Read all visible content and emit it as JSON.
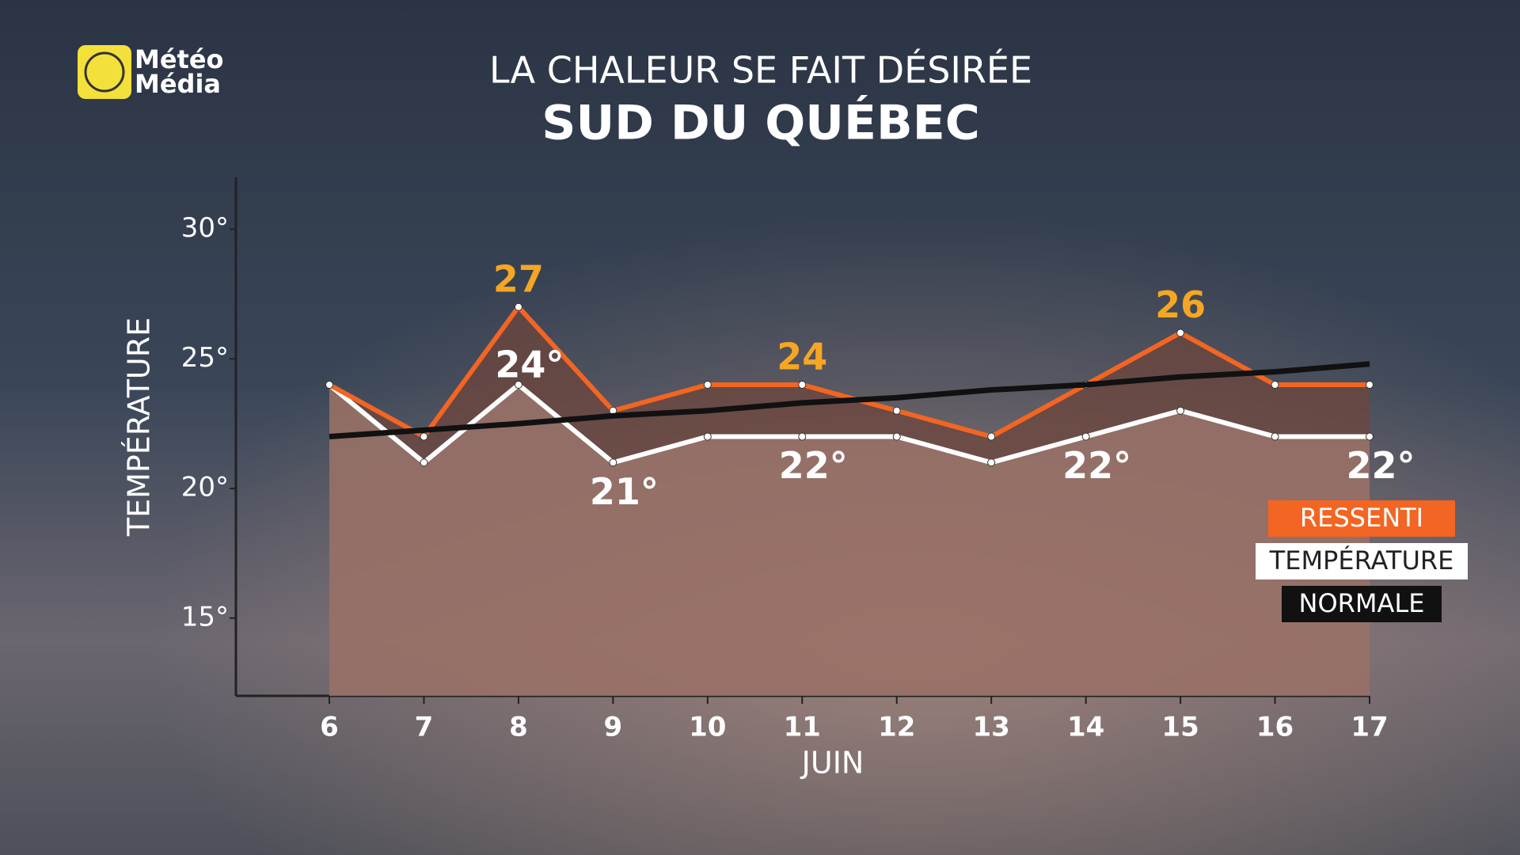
{
  "logo": {
    "lines": [
      "Météo",
      "Média"
    ]
  },
  "chart_data": {
    "type": "line",
    "title": "LA CHALEUR SE FAIT DÉSIRÉE",
    "subtitle": "SUD DU QUÉBEC",
    "x_label": "JUIN",
    "y_label": "TEMPÉRATURE",
    "categories": [
      "6",
      "7",
      "8",
      "9",
      "10",
      "11",
      "12",
      "13",
      "14",
      "15",
      "16",
      "17"
    ],
    "ylim": [
      12,
      32
    ],
    "yticks": [
      {
        "value": 15,
        "label": "15°"
      },
      {
        "value": 20,
        "label": "20°"
      },
      {
        "value": 25,
        "label": "25°"
      },
      {
        "value": 30,
        "label": "30°"
      }
    ],
    "series": [
      {
        "name": "RESSENTI",
        "color": "#f26522",
        "values": [
          24,
          22,
          27,
          23,
          24,
          24,
          23,
          22,
          24,
          26,
          24,
          24
        ],
        "value_labels": [
          null,
          null,
          "27",
          null,
          null,
          "24",
          null,
          null,
          null,
          "26",
          null,
          null
        ]
      },
      {
        "name": "TEMPÉRATURE",
        "color": "#ffffff",
        "values": [
          24,
          21,
          24,
          21,
          22,
          22,
          22,
          21,
          22,
          23,
          22,
          22
        ],
        "value_labels": [
          null,
          null,
          "24°",
          "21°",
          null,
          "22°",
          null,
          null,
          "22°",
          null,
          null,
          "22°"
        ]
      },
      {
        "name": "NORMALE",
        "color": "#111111",
        "values": [
          22,
          22.25,
          22.5,
          22.8,
          23.0,
          23.3,
          23.5,
          23.8,
          24.0,
          24.3,
          24.5,
          24.8
        ]
      }
    ]
  }
}
